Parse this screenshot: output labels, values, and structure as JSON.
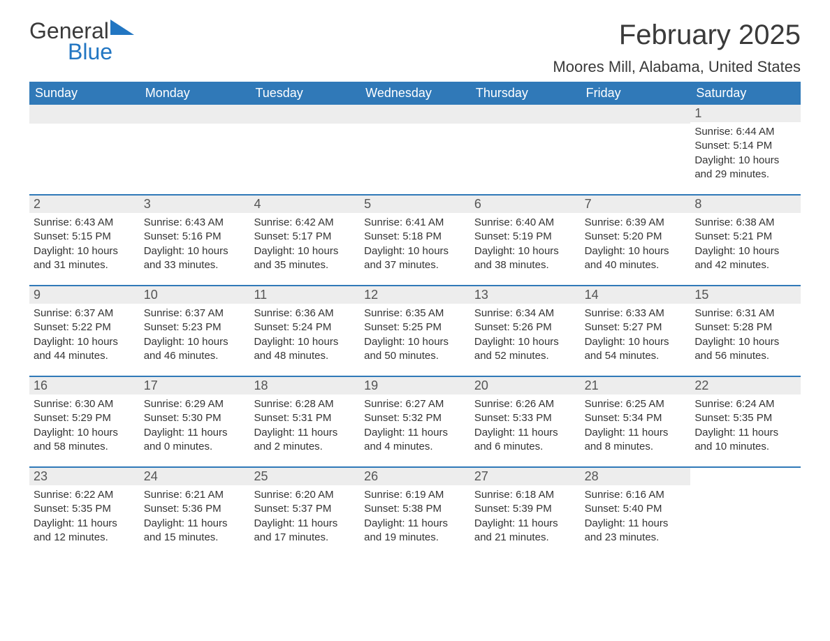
{
  "brand": {
    "text1": "General",
    "text2": "Blue",
    "accent_color": "#2276c2"
  },
  "title": "February 2025",
  "location": "Moores Mill, Alabama, United States",
  "colors": {
    "header_bg": "#3079b8",
    "header_text": "#ffffff",
    "daynum_bg": "#ededed",
    "week_border": "#3079b8",
    "body_text": "#2b2b2b"
  },
  "weekdays": [
    "Sunday",
    "Monday",
    "Tuesday",
    "Wednesday",
    "Thursday",
    "Friday",
    "Saturday"
  ],
  "weeks": [
    [
      {
        "n": "",
        "sunrise": "",
        "sunset": "",
        "day": ""
      },
      {
        "n": "",
        "sunrise": "",
        "sunset": "",
        "day": ""
      },
      {
        "n": "",
        "sunrise": "",
        "sunset": "",
        "day": ""
      },
      {
        "n": "",
        "sunrise": "",
        "sunset": "",
        "day": ""
      },
      {
        "n": "",
        "sunrise": "",
        "sunset": "",
        "day": ""
      },
      {
        "n": "",
        "sunrise": "",
        "sunset": "",
        "day": ""
      },
      {
        "n": "1",
        "sunrise": "Sunrise: 6:44 AM",
        "sunset": "Sunset: 5:14 PM",
        "day": "Daylight: 10 hours and 29 minutes."
      }
    ],
    [
      {
        "n": "2",
        "sunrise": "Sunrise: 6:43 AM",
        "sunset": "Sunset: 5:15 PM",
        "day": "Daylight: 10 hours and 31 minutes."
      },
      {
        "n": "3",
        "sunrise": "Sunrise: 6:43 AM",
        "sunset": "Sunset: 5:16 PM",
        "day": "Daylight: 10 hours and 33 minutes."
      },
      {
        "n": "4",
        "sunrise": "Sunrise: 6:42 AM",
        "sunset": "Sunset: 5:17 PM",
        "day": "Daylight: 10 hours and 35 minutes."
      },
      {
        "n": "5",
        "sunrise": "Sunrise: 6:41 AM",
        "sunset": "Sunset: 5:18 PM",
        "day": "Daylight: 10 hours and 37 minutes."
      },
      {
        "n": "6",
        "sunrise": "Sunrise: 6:40 AM",
        "sunset": "Sunset: 5:19 PM",
        "day": "Daylight: 10 hours and 38 minutes."
      },
      {
        "n": "7",
        "sunrise": "Sunrise: 6:39 AM",
        "sunset": "Sunset: 5:20 PM",
        "day": "Daylight: 10 hours and 40 minutes."
      },
      {
        "n": "8",
        "sunrise": "Sunrise: 6:38 AM",
        "sunset": "Sunset: 5:21 PM",
        "day": "Daylight: 10 hours and 42 minutes."
      }
    ],
    [
      {
        "n": "9",
        "sunrise": "Sunrise: 6:37 AM",
        "sunset": "Sunset: 5:22 PM",
        "day": "Daylight: 10 hours and 44 minutes."
      },
      {
        "n": "10",
        "sunrise": "Sunrise: 6:37 AM",
        "sunset": "Sunset: 5:23 PM",
        "day": "Daylight: 10 hours and 46 minutes."
      },
      {
        "n": "11",
        "sunrise": "Sunrise: 6:36 AM",
        "sunset": "Sunset: 5:24 PM",
        "day": "Daylight: 10 hours and 48 minutes."
      },
      {
        "n": "12",
        "sunrise": "Sunrise: 6:35 AM",
        "sunset": "Sunset: 5:25 PM",
        "day": "Daylight: 10 hours and 50 minutes."
      },
      {
        "n": "13",
        "sunrise": "Sunrise: 6:34 AM",
        "sunset": "Sunset: 5:26 PM",
        "day": "Daylight: 10 hours and 52 minutes."
      },
      {
        "n": "14",
        "sunrise": "Sunrise: 6:33 AM",
        "sunset": "Sunset: 5:27 PM",
        "day": "Daylight: 10 hours and 54 minutes."
      },
      {
        "n": "15",
        "sunrise": "Sunrise: 6:31 AM",
        "sunset": "Sunset: 5:28 PM",
        "day": "Daylight: 10 hours and 56 minutes."
      }
    ],
    [
      {
        "n": "16",
        "sunrise": "Sunrise: 6:30 AM",
        "sunset": "Sunset: 5:29 PM",
        "day": "Daylight: 10 hours and 58 minutes."
      },
      {
        "n": "17",
        "sunrise": "Sunrise: 6:29 AM",
        "sunset": "Sunset: 5:30 PM",
        "day": "Daylight: 11 hours and 0 minutes."
      },
      {
        "n": "18",
        "sunrise": "Sunrise: 6:28 AM",
        "sunset": "Sunset: 5:31 PM",
        "day": "Daylight: 11 hours and 2 minutes."
      },
      {
        "n": "19",
        "sunrise": "Sunrise: 6:27 AM",
        "sunset": "Sunset: 5:32 PM",
        "day": "Daylight: 11 hours and 4 minutes."
      },
      {
        "n": "20",
        "sunrise": "Sunrise: 6:26 AM",
        "sunset": "Sunset: 5:33 PM",
        "day": "Daylight: 11 hours and 6 minutes."
      },
      {
        "n": "21",
        "sunrise": "Sunrise: 6:25 AM",
        "sunset": "Sunset: 5:34 PM",
        "day": "Daylight: 11 hours and 8 minutes."
      },
      {
        "n": "22",
        "sunrise": "Sunrise: 6:24 AM",
        "sunset": "Sunset: 5:35 PM",
        "day": "Daylight: 11 hours and 10 minutes."
      }
    ],
    [
      {
        "n": "23",
        "sunrise": "Sunrise: 6:22 AM",
        "sunset": "Sunset: 5:35 PM",
        "day": "Daylight: 11 hours and 12 minutes."
      },
      {
        "n": "24",
        "sunrise": "Sunrise: 6:21 AM",
        "sunset": "Sunset: 5:36 PM",
        "day": "Daylight: 11 hours and 15 minutes."
      },
      {
        "n": "25",
        "sunrise": "Sunrise: 6:20 AM",
        "sunset": "Sunset: 5:37 PM",
        "day": "Daylight: 11 hours and 17 minutes."
      },
      {
        "n": "26",
        "sunrise": "Sunrise: 6:19 AM",
        "sunset": "Sunset: 5:38 PM",
        "day": "Daylight: 11 hours and 19 minutes."
      },
      {
        "n": "27",
        "sunrise": "Sunrise: 6:18 AM",
        "sunset": "Sunset: 5:39 PM",
        "day": "Daylight: 11 hours and 21 minutes."
      },
      {
        "n": "28",
        "sunrise": "Sunrise: 6:16 AM",
        "sunset": "Sunset: 5:40 PM",
        "day": "Daylight: 11 hours and 23 minutes."
      },
      {
        "n": "",
        "sunrise": "",
        "sunset": "",
        "day": ""
      }
    ]
  ]
}
